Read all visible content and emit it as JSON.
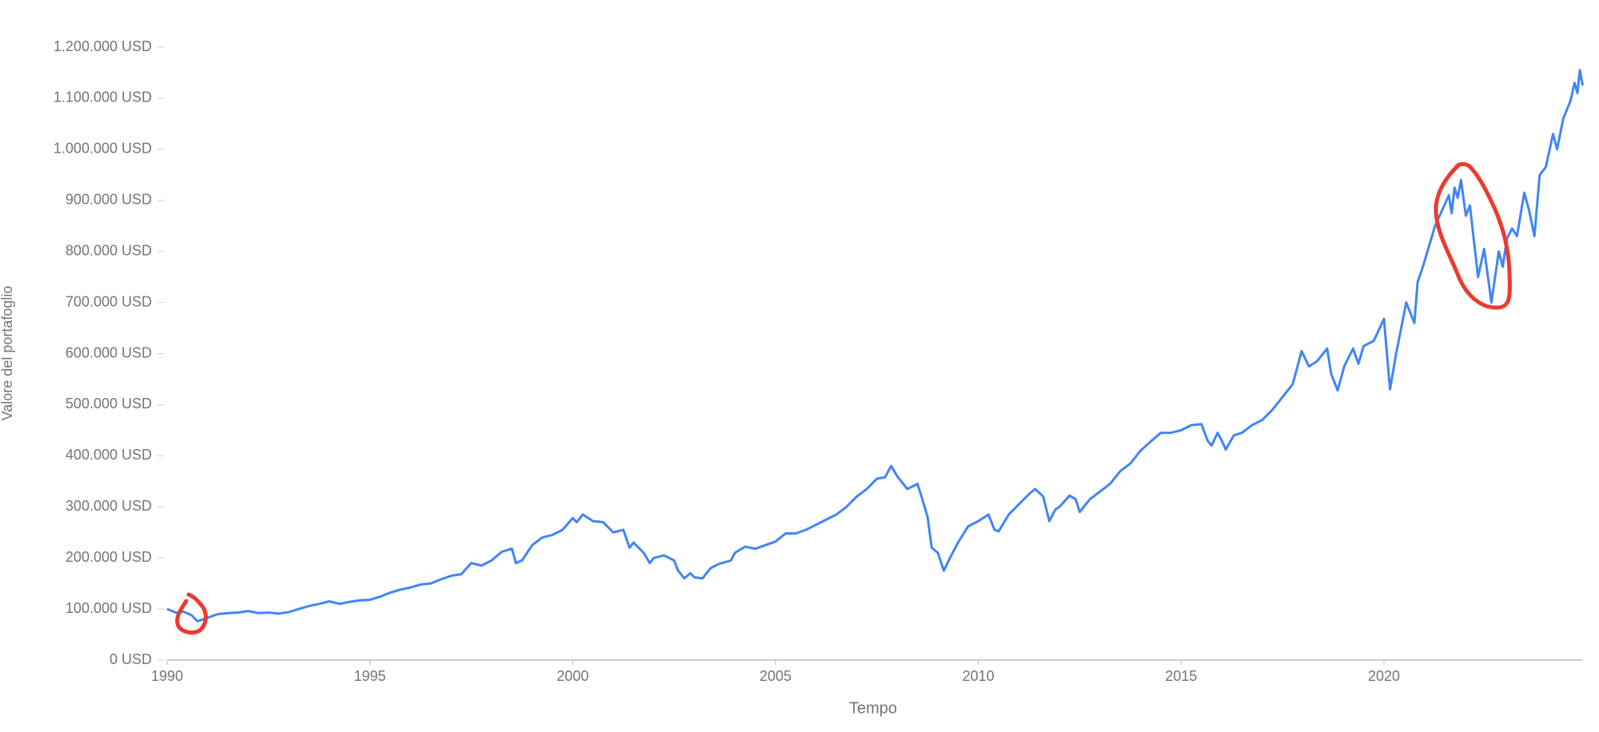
{
  "chart_data": {
    "type": "line",
    "x_label": "Tempo",
    "y_label": "Valore del portafoglio",
    "xlim": [
      1990,
      2024.9
    ],
    "xticks": [
      1990,
      1995,
      2000,
      2005,
      2010,
      2015,
      2020
    ],
    "ylim": [
      0,
      1200000
    ],
    "yticks": [
      {
        "value": 0,
        "label": "0 USD"
      },
      {
        "value": 100000,
        "label": "100.000 USD"
      },
      {
        "value": 200000,
        "label": "200.000 USD"
      },
      {
        "value": 300000,
        "label": "300.000 USD"
      },
      {
        "value": 400000,
        "label": "400.000 USD"
      },
      {
        "value": 500000,
        "label": "500.000 USD"
      },
      {
        "value": 600000,
        "label": "600.000 USD"
      },
      {
        "value": 700000,
        "label": "700.000 USD"
      },
      {
        "value": 800000,
        "label": "800.000 USD"
      },
      {
        "value": 900000,
        "label": "900.000 USD"
      },
      {
        "value": 1000000,
        "label": "1.000.000 USD"
      },
      {
        "value": 1100000,
        "label": "1.100.000 USD"
      },
      {
        "value": 1200000,
        "label": "1.200.000 USD"
      }
    ],
    "grid": false,
    "series": [
      {
        "color": "#4285f4",
        "x": [
          1990,
          1990.25,
          1990.4,
          1990.6,
          1990.75,
          1991,
          1991.25,
          1991.5,
          1991.75,
          1992,
          1992.25,
          1992.5,
          1992.75,
          1993,
          1993.25,
          1993.5,
          1993.75,
          1994,
          1994.25,
          1994.5,
          1994.75,
          1995,
          1995.25,
          1995.5,
          1995.75,
          1996,
          1996.25,
          1996.5,
          1996.75,
          1997,
          1997.25,
          1997.5,
          1997.75,
          1998,
          1998.25,
          1998.5,
          1998.6,
          1998.75,
          1999,
          1999.25,
          1999.5,
          1999.75,
          2000,
          2000.1,
          2000.25,
          2000.5,
          2000.75,
          2001,
          2001.25,
          2001.4,
          2001.5,
          2001.75,
          2001.9,
          2002,
          2002.25,
          2002.5,
          2002.6,
          2002.75,
          2002.9,
          2003,
          2003.2,
          2003.4,
          2003.6,
          2003.9,
          2004,
          2004.25,
          2004.5,
          2004.75,
          2005,
          2005.25,
          2005.5,
          2005.75,
          2006,
          2006.25,
          2006.5,
          2006.75,
          2007,
          2007.25,
          2007.5,
          2007.7,
          2007.85,
          2008,
          2008.25,
          2008.5,
          2008.6,
          2008.75,
          2008.85,
          2009,
          2009.15,
          2009.3,
          2009.5,
          2009.75,
          2010,
          2010.25,
          2010.4,
          2010.5,
          2010.75,
          2011,
          2011.25,
          2011.4,
          2011.6,
          2011.75,
          2011.9,
          2012,
          2012.25,
          2012.4,
          2012.5,
          2012.75,
          2013,
          2013.25,
          2013.5,
          2013.75,
          2014,
          2014.25,
          2014.5,
          2014.75,
          2015,
          2015.25,
          2015.5,
          2015.65,
          2015.75,
          2015.9,
          2016,
          2016.1,
          2016.3,
          2016.5,
          2016.75,
          2017,
          2017.25,
          2017.5,
          2017.75,
          2017.97,
          2018.15,
          2018.35,
          2018.6,
          2018.7,
          2018.86,
          2019.02,
          2019.24,
          2019.37,
          2019.5,
          2019.75,
          2020,
          2020.15,
          2020.3,
          2020.55,
          2020.75,
          2020.83,
          2020.96,
          2021.26,
          2021.6,
          2021.67,
          2021.74,
          2021.82,
          2021.9,
          2022.02,
          2022.12,
          2022.22,
          2022.32,
          2022.47,
          2022.65,
          2022.83,
          2022.93,
          2023.03,
          2023.16,
          2023.28,
          2023.46,
          2023.58,
          2023.71,
          2023.84,
          2023.99,
          2024.17,
          2024.27,
          2024.42,
          2024.6,
          2024.7,
          2024.77,
          2024.83,
          2024.9
        ],
        "values": [
          100000,
          92000,
          95000,
          88000,
          76000,
          83000,
          90000,
          92000,
          93000,
          96000,
          92000,
          93000,
          91000,
          94000,
          100000,
          106000,
          110000,
          115000,
          110000,
          114000,
          117000,
          118000,
          124000,
          132000,
          138000,
          142000,
          148000,
          150000,
          158000,
          165000,
          168000,
          190000,
          185000,
          195000,
          212000,
          218000,
          190000,
          195000,
          225000,
          240000,
          245000,
          255000,
          278000,
          270000,
          285000,
          272000,
          270000,
          250000,
          255000,
          220000,
          230000,
          210000,
          190000,
          200000,
          205000,
          195000,
          175000,
          160000,
          170000,
          162000,
          160000,
          180000,
          188000,
          195000,
          210000,
          222000,
          218000,
          225000,
          232000,
          248000,
          248000,
          255000,
          265000,
          275000,
          285000,
          300000,
          320000,
          335000,
          355000,
          358000,
          380000,
          360000,
          335000,
          345000,
          320000,
          280000,
          220000,
          210000,
          175000,
          200000,
          230000,
          262000,
          272000,
          285000,
          255000,
          252000,
          285000,
          305000,
          325000,
          335000,
          320000,
          272000,
          295000,
          300000,
          322000,
          315000,
          290000,
          315000,
          330000,
          345000,
          370000,
          385000,
          410000,
          428000,
          445000,
          445000,
          450000,
          460000,
          462000,
          430000,
          420000,
          445000,
          430000,
          412000,
          440000,
          445000,
          460000,
          470000,
          490000,
          515000,
          540000,
          605000,
          575000,
          585000,
          610000,
          560000,
          528000,
          575000,
          610000,
          580000,
          615000,
          625000,
          668000,
          530000,
          600000,
          700000,
          660000,
          740000,
          770000,
          850000,
          910000,
          875000,
          925000,
          905000,
          940000,
          870000,
          890000,
          820000,
          750000,
          805000,
          700000,
          800000,
          770000,
          825000,
          845000,
          830000,
          915000,
          880000,
          830000,
          950000,
          965000,
          1030000,
          1000000,
          1060000,
          1095000,
          1130000,
          1110000,
          1155000,
          1125000
        ]
      }
    ]
  }
}
